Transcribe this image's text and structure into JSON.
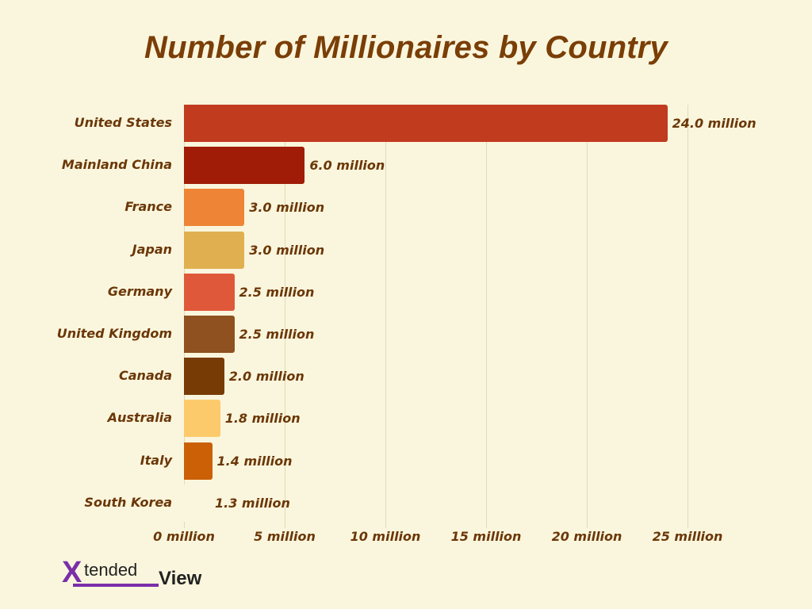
{
  "title": "Number of Millionaires by Country",
  "logo": {
    "x": "X",
    "tended": "tended",
    "view": "View"
  },
  "chart_data": {
    "type": "bar",
    "orientation": "horizontal",
    "title": "Number of Millionaires by Country",
    "xlabel": "",
    "ylabel": "",
    "xlim": [
      0,
      25
    ],
    "grid": true,
    "categories": [
      "United States",
      "Mainland China",
      "France",
      "Japan",
      "Germany",
      "United Kingdom",
      "Canada",
      "Australia",
      "Italy",
      "South Korea"
    ],
    "values": [
      24.0,
      6.0,
      3.0,
      3.0,
      2.5,
      2.5,
      2.0,
      1.8,
      1.4,
      1.3
    ],
    "value_labels": [
      "24.0 million",
      "6.0 million",
      "3.0 million",
      "3.0 million",
      "2.5 million",
      "2.5 million",
      "2.0 million",
      "1.8 million",
      "1.4 million",
      "1.3 million"
    ],
    "colors": [
      "#c13b1f",
      "#a01c06",
      "#ee8436",
      "#e0b050",
      "#e0583a",
      "#8e511f",
      "#773b05",
      "#fdca6b",
      "#cc6006",
      "#faf6dd"
    ],
    "x_ticks": [
      "0 million",
      "5 million",
      "10 million",
      "15 million",
      "20 million",
      "25 million"
    ],
    "unit": "million"
  }
}
